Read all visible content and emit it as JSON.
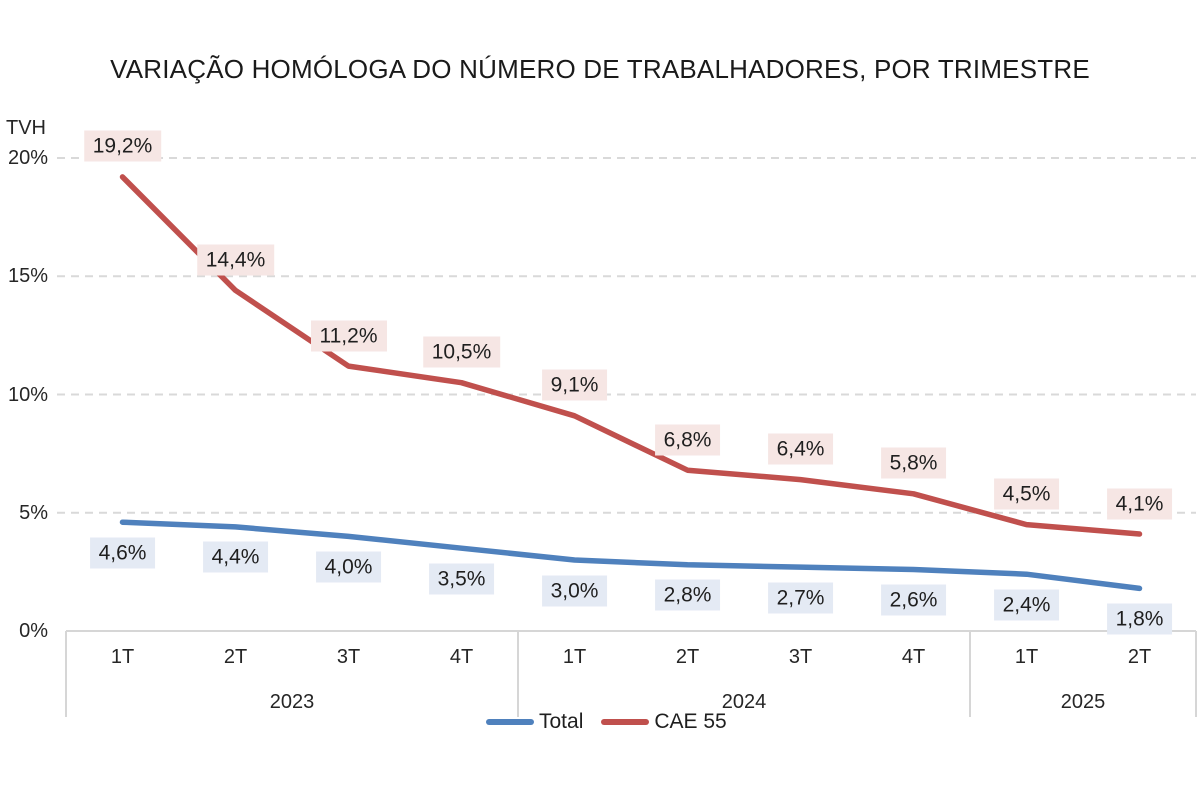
{
  "title": "VARIAÇÃO HOMÓLOGA DO NÚMERO DE TRABALHADORES, POR TRIMESTRE",
  "chart_data": {
    "type": "line",
    "title": "VARIAÇÃO HOMÓLOGA DO NÚMERO DE TRABALHADORES, POR TRIMESTRE",
    "ylabel": "TVH",
    "xlabel": "",
    "ylim": [
      0,
      20
    ],
    "grid": "horizontal-dashed",
    "legend_position": "bottom-center",
    "yticks": [
      {
        "value": 0,
        "label": "0%"
      },
      {
        "value": 5,
        "label": "5%"
      },
      {
        "value": 10,
        "label": "10%"
      },
      {
        "value": 15,
        "label": "15%"
      },
      {
        "value": 20,
        "label": "20%"
      }
    ],
    "categories": [
      "1T",
      "2T",
      "3T",
      "4T",
      "1T",
      "2T",
      "3T",
      "4T",
      "1T",
      "2T"
    ],
    "year_groups": [
      {
        "label": "2023",
        "span": 4
      },
      {
        "label": "2024",
        "span": 4
      },
      {
        "label": "2025",
        "span": 2
      }
    ],
    "series": [
      {
        "name": "Total",
        "color": "#4F81BD",
        "label_bg": "#E4EAF4",
        "label_placement": "below",
        "values": [
          4.6,
          4.4,
          4.0,
          3.5,
          3.0,
          2.8,
          2.7,
          2.6,
          2.4,
          1.8
        ],
        "labels": [
          "4,6%",
          "4,4%",
          "4,0%",
          "3,5%",
          "3,0%",
          "2,8%",
          "2,7%",
          "2,6%",
          "2,4%",
          "1,8%"
        ]
      },
      {
        "name": "CAE 55",
        "color": "#C0504D",
        "label_bg": "#F6E6E4",
        "label_placement": "above",
        "values": [
          19.2,
          14.4,
          11.2,
          10.5,
          9.1,
          6.8,
          6.4,
          5.8,
          4.5,
          4.1
        ],
        "labels": [
          "19,2%",
          "14,4%",
          "11,2%",
          "10,5%",
          "9,1%",
          "6,8%",
          "6,4%",
          "5,8%",
          "4,5%",
          "4,1%"
        ]
      }
    ],
    "legend_entries": [
      "Total",
      "CAE 55"
    ],
    "colors": {
      "gridline": "#D9D9D9",
      "axis_line": "#D6D6D6",
      "text": "#262626",
      "title_text": "#1A1A1A"
    }
  }
}
